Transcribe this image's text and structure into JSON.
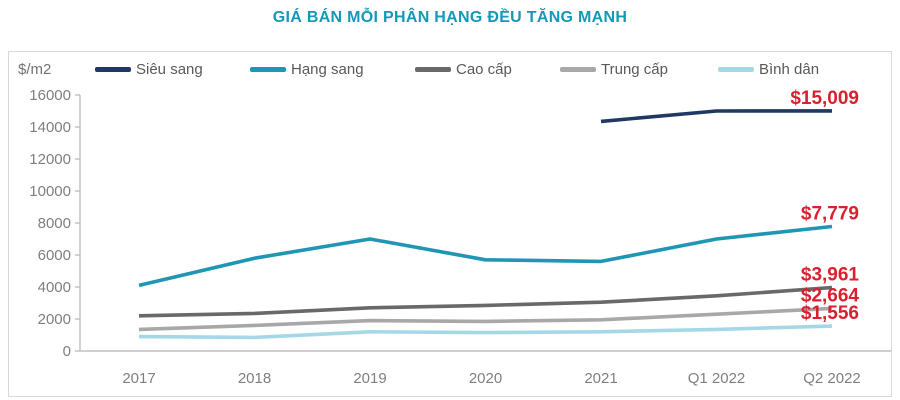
{
  "chart_data": {
    "type": "line",
    "title": "GIÁ BÁN MỖI PHÂN HẠNG ĐỀU TĂNG MẠNH",
    "unit_label": "$/m2",
    "categories": [
      "2017",
      "2018",
      "2019",
      "2020",
      "2021",
      "Q1 2022",
      "Q2 2022"
    ],
    "ylim": [
      0,
      16000
    ],
    "yticks": [
      0,
      2000,
      4000,
      6000,
      8000,
      10000,
      12000,
      14000,
      16000
    ],
    "grid": "off",
    "legend_position": "top",
    "series": [
      {
        "key": "sieu-sang",
        "name": "Siêu sang",
        "color": "#1F3864",
        "values": [
          null,
          null,
          null,
          null,
          14350,
          15000,
          15009
        ],
        "end_label": "$15,009"
      },
      {
        "key": "hang-sang",
        "name": "Hạng sang",
        "color": "#1E96B4",
        "values": [
          4100,
          5800,
          7000,
          5700,
          5600,
          7000,
          7779
        ],
        "end_label": "$7,779"
      },
      {
        "key": "cao-cap",
        "name": "Cao cấp",
        "color": "#696969",
        "values": [
          2200,
          2350,
          2700,
          2850,
          3050,
          3450,
          3961
        ],
        "end_label": "$3,961"
      },
      {
        "key": "trung-cap",
        "name": "Trung cấp",
        "color": "#A8A8A8",
        "values": [
          1350,
          1600,
          1900,
          1850,
          1950,
          2300,
          2664
        ],
        "end_label": "$2,664"
      },
      {
        "key": "binh-dan",
        "name": "Bình dân",
        "color": "#A5D8E6",
        "values": [
          900,
          850,
          1200,
          1150,
          1200,
          1350,
          1556
        ],
        "end_label": "$1,556"
      }
    ],
    "colors": {
      "title": "#1598B8",
      "end_label": "#D9202F",
      "axis_line": "#BFBFBF",
      "axis_text": "#7F7F7F",
      "legend_text": "#595959",
      "border": "#D9D9D9"
    }
  }
}
